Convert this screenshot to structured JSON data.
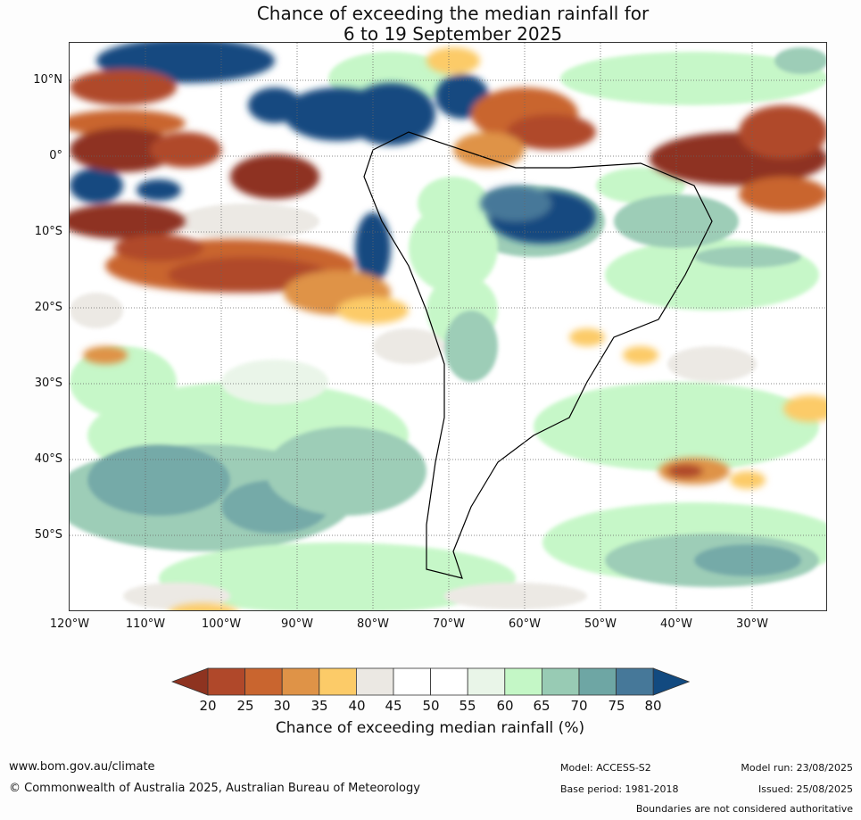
{
  "title": {
    "line1": "Chance of exceeding the median rainfall for",
    "line2": "6 to 19 September 2025"
  },
  "map": {
    "region": "South America",
    "lat_labels": [
      "10°N",
      "0°",
      "10°S",
      "20°S",
      "30°S",
      "40°S",
      "50°S"
    ],
    "lon_labels": [
      "120°W",
      "110°W",
      "100°W",
      "90°W",
      "80°W",
      "70°W",
      "60°W",
      "50°W",
      "40°W",
      "30°W"
    ]
  },
  "colorbar": {
    "ticks": [
      "20",
      "25",
      "30",
      "35",
      "40",
      "45",
      "50",
      "55",
      "60",
      "65",
      "70",
      "75",
      "80"
    ],
    "colors": [
      "#8e3320",
      "#b0482a",
      "#c9652f",
      "#df9347",
      "#fccb68",
      "#ebe8e3",
      "#ffffff",
      "#ffffff",
      "#e9f5e8",
      "#c4f7c6",
      "#98cbb4",
      "#6ea6a4",
      "#467899",
      "#124a80"
    ],
    "label": "Chance of exceeding median rainfall (%)"
  },
  "footer": {
    "website": "www.bom.gov.au/climate",
    "copyright": "© Commonwealth of Australia 2025, Australian Bureau of Meteorology",
    "model": "Model: ACCESS-S2",
    "base_period": "Base period: 1981-2018",
    "model_run": "Model run: 23/08/2025",
    "issued": "Issued: 25/08/2025",
    "disclaimer": "Boundaries are not considered authoritative"
  }
}
